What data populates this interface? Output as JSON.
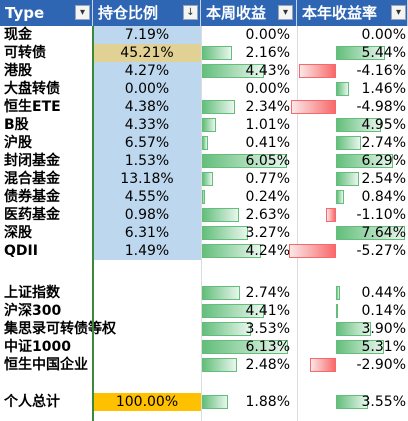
{
  "header": {
    "type_label": "Type",
    "hold_label": "持仓比例",
    "hold_filter_icon": "↓",
    "week_label": "本周收益",
    "year_label": "本年收益率"
  },
  "colors": {
    "header_bg": "#2f66b3",
    "hold_fill": "#bdd7ee",
    "hold_highlight": "#e2d195",
    "total_fill": "#ffc000",
    "bar_positive": "#63be7b",
    "bar_negative": "#f8696b"
  },
  "rows": [
    {
      "name": "现金",
      "hold": "7.19%",
      "hold_level": 0.0719,
      "week": "0.00%",
      "week_level": 0.0,
      "year": "0.00%",
      "year_level": 0.0,
      "hold_style": "blue"
    },
    {
      "name": "可转债",
      "hold": "45.21%",
      "hold_level": 0.4521,
      "week": "2.16%",
      "week_level": 0.0216,
      "year": "5.44%",
      "year_level": 0.0544,
      "hold_style": "tan"
    },
    {
      "name": "港股",
      "hold": "4.27%",
      "hold_level": 0.0427,
      "week": "4.43%",
      "week_level": 0.0443,
      "year": "-4.16%",
      "year_level": -0.0416,
      "hold_style": "blue"
    },
    {
      "name": "大盘转债",
      "hold": "0.00%",
      "hold_level": 0.0,
      "week": "0.00%",
      "week_level": 0.0,
      "year": "1.46%",
      "year_level": 0.0146,
      "hold_style": "blue"
    },
    {
      "name": "恒生ETE",
      "hold": "4.38%",
      "hold_level": 0.0438,
      "week": "2.34%",
      "week_level": 0.0234,
      "year": "-4.98%",
      "year_level": -0.0498,
      "hold_style": "blue"
    },
    {
      "name": "B股",
      "hold": "4.33%",
      "hold_level": 0.0433,
      "week": "1.01%",
      "week_level": 0.0101,
      "year": "4.95%",
      "year_level": 0.0495,
      "hold_style": "blue"
    },
    {
      "name": "沪股",
      "hold": "6.57%",
      "hold_level": 0.0657,
      "week": "0.41%",
      "week_level": 0.0041,
      "year": "2.74%",
      "year_level": 0.0274,
      "hold_style": "blue"
    },
    {
      "name": "封闭基金",
      "hold": "1.53%",
      "hold_level": 0.0153,
      "week": "6.05%",
      "week_level": 0.0605,
      "year": "6.29%",
      "year_level": 0.0629,
      "hold_style": "blue"
    },
    {
      "name": "混合基金",
      "hold": "13.18%",
      "hold_level": 0.1318,
      "week": "0.77%",
      "week_level": 0.0077,
      "year": "2.54%",
      "year_level": 0.0254,
      "hold_style": "blue"
    },
    {
      "name": "债券基金",
      "hold": "4.55%",
      "hold_level": 0.0455,
      "week": "0.24%",
      "week_level": 0.0024,
      "year": "0.84%",
      "year_level": 0.0084,
      "hold_style": "blue"
    },
    {
      "name": "医药基金",
      "hold": "0.98%",
      "hold_level": 0.0098,
      "week": "2.63%",
      "week_level": 0.0263,
      "year": "-1.10%",
      "year_level": -0.011,
      "hold_style": "blue"
    },
    {
      "name": "深股",
      "hold": "6.31%",
      "hold_level": 0.0631,
      "week": "3.27%",
      "week_level": 0.0327,
      "year": "7.64%",
      "year_level": 0.0764,
      "hold_style": "blue"
    },
    {
      "name": "QDII",
      "hold": "1.49%",
      "hold_level": 0.0149,
      "week": "4.24%",
      "week_level": 0.0424,
      "year": "-5.27%",
      "year_level": -0.0527,
      "hold_style": "blue"
    }
  ],
  "indices": [
    {
      "name": "上证指数",
      "week": "2.74%",
      "week_level": 0.0274,
      "year": "0.44%",
      "year_level": 0.0044
    },
    {
      "name": "沪深300",
      "week": "4.41%",
      "week_level": 0.0441,
      "year": "0.14%",
      "year_level": 0.0014
    },
    {
      "name": "集思录可转债等权",
      "week": "3.53%",
      "week_level": 0.0353,
      "year": "3.90%",
      "year_level": 0.039
    },
    {
      "name": "中证1000",
      "week": "6.13%",
      "week_level": 0.0613,
      "year": "5.31%",
      "year_level": 0.0531
    },
    {
      "name": "恒生中国企业",
      "week": "2.48%",
      "week_level": 0.0248,
      "year": "-2.90%",
      "year_level": -0.029
    }
  ],
  "total": {
    "name": "个人总计",
    "hold": "100.00%",
    "week": "1.88%",
    "week_level": 0.0188,
    "year": "3.55%",
    "year_level": 0.0355
  }
}
